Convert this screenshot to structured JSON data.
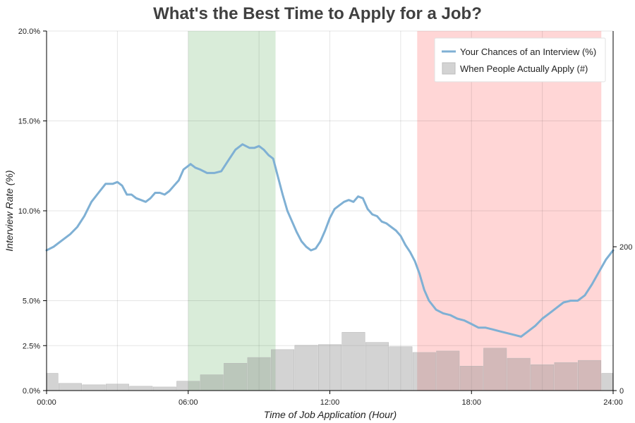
{
  "chart_data": {
    "type": "line",
    "title": "What's the Best Time to Apply for a Job?",
    "xlabel": "Time of Job Application (Hour)",
    "ylabel": "Interview Rate (%)",
    "x_range_hours": [
      0,
      24
    ],
    "y_range_percent": [
      0,
      20
    ],
    "secondary_y_range": [
      0,
      500
    ],
    "grid": true,
    "legend_position": "top-right",
    "x_ticks": [
      {
        "hour": 0,
        "label": "00:00"
      },
      {
        "hour": 6,
        "label": "06:00"
      },
      {
        "hour": 12,
        "label": "12:00"
      },
      {
        "hour": 18,
        "label": "18:00"
      },
      {
        "hour": 24,
        "label": "24:00"
      }
    ],
    "y_ticks": [
      {
        "value": 0,
        "label": "0.0%"
      },
      {
        "value": 2.5,
        "label": "2.5%"
      },
      {
        "value": 5,
        "label": "5.0%"
      },
      {
        "value": 10,
        "label": "10.0%"
      },
      {
        "value": 15,
        "label": "15.0%"
      },
      {
        "value": 20,
        "label": "20.0%"
      }
    ],
    "secondary_y_ticks": [
      {
        "value": 0,
        "label": "0"
      },
      {
        "value": 200,
        "label": "200"
      }
    ],
    "shaded_regions": [
      {
        "start_hour": 6.0,
        "end_hour": 9.7,
        "color": "#d9ecd9"
      },
      {
        "start_hour": 15.7,
        "end_hour": 23.5,
        "color": "#ffd6d6"
      }
    ],
    "series": [
      {
        "name": "Your Chances of an Interview (%)",
        "type": "line",
        "axis": "left",
        "color": "#7fb0d4",
        "x": [
          0,
          0.3,
          0.7,
          1.0,
          1.3,
          1.6,
          1.9,
          2.2,
          2.5,
          2.8,
          3.0,
          3.2,
          3.4,
          3.6,
          3.8,
          4.0,
          4.2,
          4.4,
          4.6,
          4.8,
          5.0,
          5.2,
          5.4,
          5.6,
          5.8,
          6.0,
          6.1,
          6.3,
          6.5,
          6.8,
          7.1,
          7.4,
          7.7,
          8.0,
          8.3,
          8.6,
          8.8,
          9.0,
          9.2,
          9.4,
          9.6,
          9.8,
          10.0,
          10.2,
          10.4,
          10.6,
          10.8,
          11.0,
          11.2,
          11.4,
          11.6,
          11.8,
          12.0,
          12.2,
          12.4,
          12.6,
          12.8,
          13.0,
          13.2,
          13.4,
          13.6,
          13.8,
          14.0,
          14.2,
          14.4,
          14.6,
          14.8,
          15.0,
          15.2,
          15.4,
          15.6,
          15.8,
          16.0,
          16.2,
          16.5,
          16.8,
          17.1,
          17.4,
          17.7,
          18.0,
          18.3,
          18.6,
          18.9,
          19.2,
          19.5,
          19.8,
          20.1,
          20.4,
          20.7,
          21.0,
          21.3,
          21.6,
          21.9,
          22.2,
          22.5,
          22.8,
          23.1,
          23.4,
          23.7,
          24.0
        ],
        "values": [
          7.8,
          8.0,
          8.4,
          8.7,
          9.1,
          9.7,
          10.5,
          11.0,
          11.5,
          11.5,
          11.6,
          11.4,
          10.9,
          10.9,
          10.7,
          10.6,
          10.5,
          10.7,
          11.0,
          11.0,
          10.9,
          11.1,
          11.4,
          11.7,
          12.3,
          12.5,
          12.6,
          12.4,
          12.3,
          12.1,
          12.1,
          12.2,
          12.8,
          13.4,
          13.7,
          13.5,
          13.5,
          13.6,
          13.4,
          13.1,
          12.9,
          11.9,
          10.9,
          10.0,
          9.4,
          8.8,
          8.3,
          8.0,
          7.8,
          7.9,
          8.3,
          8.9,
          9.6,
          10.1,
          10.3,
          10.5,
          10.6,
          10.5,
          10.8,
          10.7,
          10.1,
          9.8,
          9.7,
          9.4,
          9.3,
          9.1,
          8.9,
          8.6,
          8.1,
          7.7,
          7.2,
          6.5,
          5.6,
          5.0,
          4.5,
          4.3,
          4.2,
          4.0,
          3.9,
          3.7,
          3.5,
          3.5,
          3.4,
          3.3,
          3.2,
          3.1,
          3.0,
          3.3,
          3.6,
          4.0,
          4.3,
          4.6,
          4.9,
          5.0,
          5.0,
          5.3,
          5.9,
          6.6,
          7.3,
          7.8
        ]
      },
      {
        "name": "When People Actually Apply (#)",
        "type": "bar",
        "axis": "right",
        "color": "#d3d3d3",
        "bin_starts_hour": [
          0.0,
          0.5,
          1.5,
          2.5,
          3.5,
          4.5,
          5.5,
          6.5,
          7.5,
          8.5,
          9.5,
          10.5,
          11.5,
          12.5,
          13.5,
          14.5,
          15.5,
          16.5,
          17.5,
          18.5,
          19.5,
          20.5,
          21.5,
          22.5,
          23.5
        ],
        "bin_ends_hour": [
          0.5,
          1.5,
          2.5,
          3.5,
          4.5,
          5.5,
          6.5,
          7.5,
          8.5,
          9.5,
          10.5,
          11.5,
          12.5,
          13.5,
          14.5,
          15.5,
          16.5,
          17.5,
          18.5,
          19.5,
          20.5,
          21.5,
          22.5,
          23.5,
          24.0
        ],
        "values": [
          24,
          10,
          8,
          9,
          6,
          5,
          13,
          22,
          38,
          46,
          57,
          63,
          64,
          81,
          67,
          61,
          53,
          55,
          34,
          59,
          45,
          36,
          39,
          42,
          24
        ]
      }
    ]
  }
}
